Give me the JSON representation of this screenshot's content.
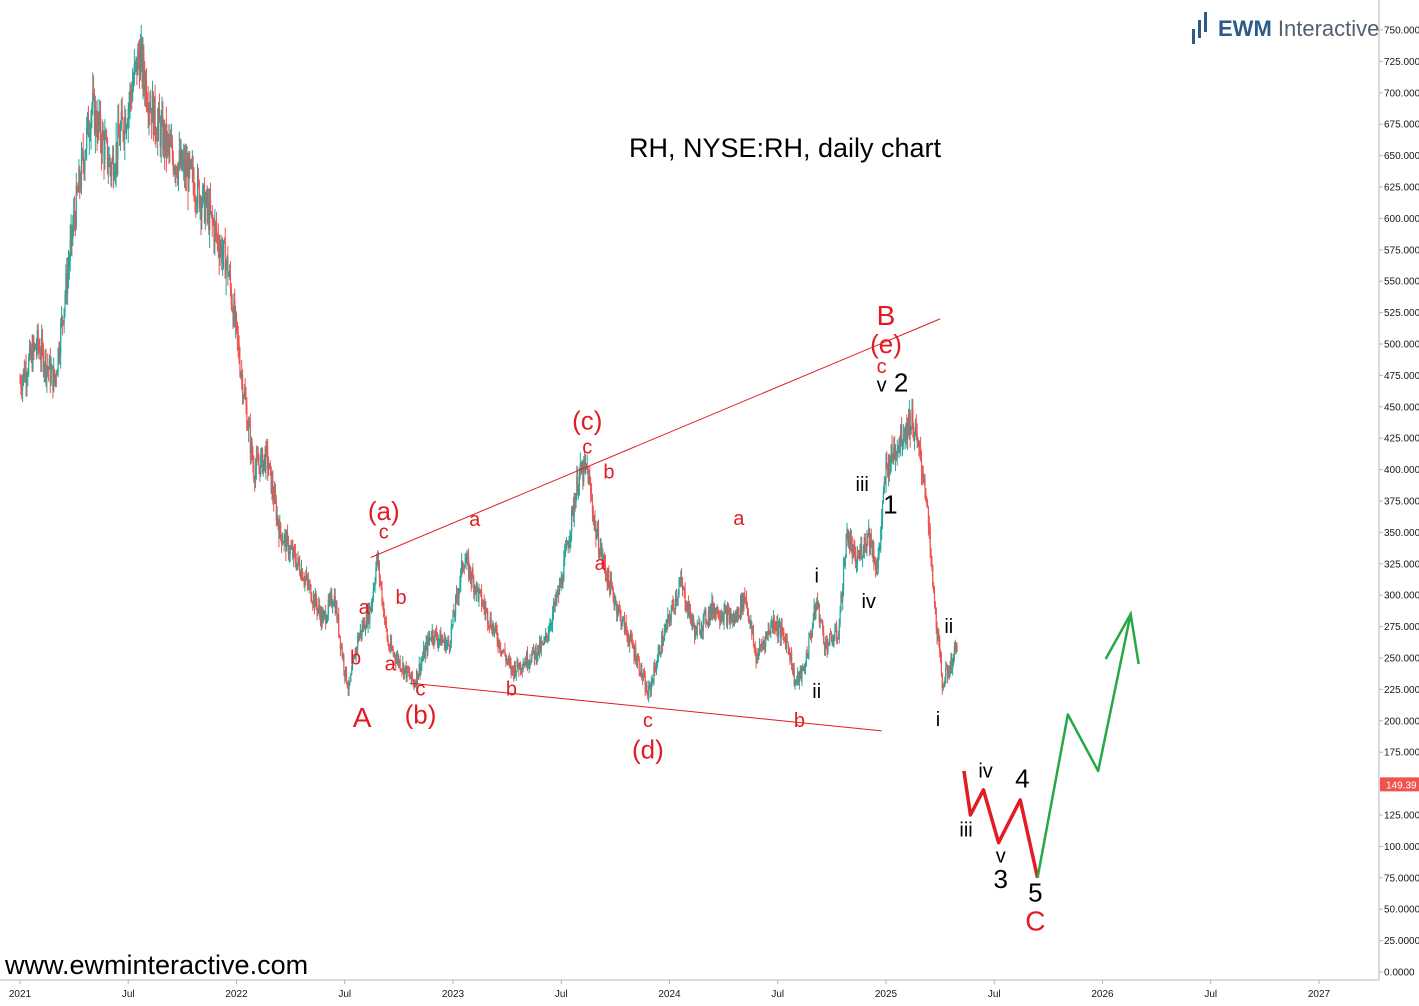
{
  "brand": {
    "name_bold": "EWM",
    "name_rest": " Interactive"
  },
  "watermark": "www.ewminteractive.com",
  "chart_data": {
    "type": "candlestick",
    "title": "RH, NYSE:RH, daily chart",
    "y_ticks": [
      "0.0000",
      "25.0000",
      "50.0000",
      "75.0000",
      "100.0000",
      "125.0000",
      "150.0000",
      "175.0000",
      "200.0000",
      "225.0000",
      "250.0000",
      "275.0000",
      "300.0000",
      "325.0000",
      "350.0000",
      "375.0000",
      "400.0000",
      "425.0000",
      "450.0000",
      "475.0000",
      "500.0000",
      "525.0000",
      "550.0000",
      "575.0000",
      "600.0000",
      "625.0000",
      "650.0000",
      "675.0000",
      "700.0000",
      "725.0000",
      "750.0000"
    ],
    "ylim": [
      0,
      760
    ],
    "x_ticks": [
      "2021",
      "Jul",
      "2022",
      "Jul",
      "2023",
      "Jul",
      "2024",
      "Jul",
      "2025",
      "Jul",
      "2026",
      "Jul",
      "2027"
    ],
    "last_price": "149.39",
    "colors": {
      "up": "#26a69a",
      "down": "#ef5350",
      "annotation": "#e31b23",
      "projection_red": "#e31b23",
      "projection_green": "#27a844"
    },
    "price_path": [
      [
        2021.0,
        470
      ],
      [
        2021.08,
        500
      ],
      [
        2021.16,
        470
      ],
      [
        2021.25,
        600
      ],
      [
        2021.33,
        690
      ],
      [
        2021.42,
        640
      ],
      [
        2021.5,
        690
      ],
      [
        2021.55,
        730
      ],
      [
        2021.62,
        680
      ],
      [
        2021.7,
        650
      ],
      [
        2021.8,
        630
      ],
      [
        2021.88,
        600
      ],
      [
        2021.96,
        560
      ],
      [
        2022.02,
        480
      ],
      [
        2022.08,
        400
      ],
      [
        2022.14,
        410
      ],
      [
        2022.2,
        350
      ],
      [
        2022.3,
        320
      ],
      [
        2022.4,
        280
      ],
      [
        2022.45,
        300
      ],
      [
        2022.5,
        240
      ],
      [
        2022.52,
        225
      ],
      [
        2022.56,
        265
      ],
      [
        2022.62,
        290
      ],
      [
        2022.65,
        330
      ],
      [
        2022.7,
        260
      ],
      [
        2022.78,
        240
      ],
      [
        2022.82,
        230
      ],
      [
        2022.9,
        270
      ],
      [
        2022.98,
        260
      ],
      [
        2023.05,
        330
      ],
      [
        2023.12,
        300
      ],
      [
        2023.22,
        260
      ],
      [
        2023.27,
        240
      ],
      [
        2023.35,
        250
      ],
      [
        2023.42,
        260
      ],
      [
        2023.5,
        310
      ],
      [
        2023.58,
        395
      ],
      [
        2023.62,
        400
      ],
      [
        2023.66,
        350
      ],
      [
        2023.72,
        310
      ],
      [
        2023.78,
        280
      ],
      [
        2023.85,
        250
      ],
      [
        2023.9,
        220
      ],
      [
        2023.96,
        260
      ],
      [
        2024.05,
        310
      ],
      [
        2024.12,
        270
      ],
      [
        2024.2,
        290
      ],
      [
        2024.3,
        280
      ],
      [
        2024.35,
        300
      ],
      [
        2024.4,
        250
      ],
      [
        2024.48,
        280
      ],
      [
        2024.55,
        260
      ],
      [
        2024.58,
        230
      ],
      [
        2024.62,
        240
      ],
      [
        2024.68,
        295
      ],
      [
        2024.72,
        260
      ],
      [
        2024.78,
        270
      ],
      [
        2024.82,
        350
      ],
      [
        2024.86,
        325
      ],
      [
        2024.92,
        350
      ],
      [
        2024.96,
        320
      ],
      [
        2025.0,
        400
      ],
      [
        2025.05,
        420
      ],
      [
        2025.08,
        430
      ],
      [
        2025.12,
        440
      ],
      [
        2025.18,
        390
      ],
      [
        2025.22,
        300
      ],
      [
        2025.26,
        230
      ],
      [
        2025.3,
        245
      ],
      [
        2025.33,
        260
      ]
    ],
    "projection_c": [
      [
        2025.36,
        160
      ],
      [
        2025.39,
        125
      ],
      [
        2025.45,
        145
      ],
      [
        2025.52,
        103
      ],
      [
        2025.62,
        137
      ],
      [
        2025.7,
        75
      ]
    ],
    "projection_up": [
      [
        2025.7,
        75
      ],
      [
        2025.84,
        205
      ],
      [
        2025.98,
        160
      ],
      [
        2026.13,
        285
      ]
    ],
    "trendlines": [
      {
        "from": [
          2022.62,
          330
        ],
        "to": [
          2025.25,
          520
        ]
      },
      {
        "from": [
          2022.8,
          230
        ],
        "to": [
          2024.98,
          192
        ]
      }
    ],
    "annotations": [
      {
        "text": "A",
        "color": "red",
        "size": "lg",
        "x": 2022.58,
        "y": 195
      },
      {
        "text": "(a)",
        "color": "red",
        "size": "md",
        "x": 2022.68,
        "y": 360
      },
      {
        "text": "c",
        "color": "red",
        "size": "sm",
        "x": 2022.68,
        "y": 345
      },
      {
        "text": "a",
        "color": "red",
        "size": "sm",
        "x": 2022.59,
        "y": 285
      },
      {
        "text": "b",
        "color": "red",
        "size": "sm",
        "x": 2022.76,
        "y": 293
      },
      {
        "text": "b",
        "color": "red",
        "size": "sm",
        "x": 2022.55,
        "y": 245
      },
      {
        "text": "a",
        "color": "red",
        "size": "sm",
        "x": 2022.71,
        "y": 240
      },
      {
        "text": "c",
        "color": "red",
        "size": "sm",
        "x": 2022.85,
        "y": 220
      },
      {
        "text": "(b)",
        "color": "red",
        "size": "md",
        "x": 2022.85,
        "y": 198
      },
      {
        "text": "a",
        "color": "red",
        "size": "sm",
        "x": 2023.1,
        "y": 355
      },
      {
        "text": "b",
        "color": "red",
        "size": "sm",
        "x": 2023.27,
        "y": 220
      },
      {
        "text": "(c)",
        "color": "red",
        "size": "md",
        "x": 2023.62,
        "y": 432
      },
      {
        "text": "c",
        "color": "red",
        "size": "sm",
        "x": 2023.62,
        "y": 413
      },
      {
        "text": "b",
        "color": "red",
        "size": "sm",
        "x": 2023.72,
        "y": 393
      },
      {
        "text": "a",
        "color": "red",
        "size": "sm",
        "x": 2023.68,
        "y": 320
      },
      {
        "text": "c",
        "color": "red",
        "size": "sm",
        "x": 2023.9,
        "y": 195
      },
      {
        "text": "(d)",
        "color": "red",
        "size": "md",
        "x": 2023.9,
        "y": 170
      },
      {
        "text": "a",
        "color": "red",
        "size": "sm",
        "x": 2024.32,
        "y": 356
      },
      {
        "text": "b",
        "color": "red",
        "size": "sm",
        "x": 2024.6,
        "y": 195
      },
      {
        "text": "i",
        "color": "black",
        "size": "sm",
        "x": 2024.68,
        "y": 310
      },
      {
        "text": "ii",
        "color": "black",
        "size": "sm",
        "x": 2024.68,
        "y": 218
      },
      {
        "text": "iii",
        "color": "black",
        "size": "sm",
        "x": 2024.89,
        "y": 383
      },
      {
        "text": "iv",
        "color": "black",
        "size": "sm",
        "x": 2024.92,
        "y": 290
      },
      {
        "text": "B",
        "color": "red",
        "size": "lg",
        "x": 2025.0,
        "y": 515
      },
      {
        "text": "(e)",
        "color": "red",
        "size": "md",
        "x": 2025.0,
        "y": 493
      },
      {
        "text": "c",
        "color": "red",
        "size": "sm",
        "x": 2024.98,
        "y": 477
      },
      {
        "text": "v",
        "color": "black",
        "size": "sm",
        "x": 2024.98,
        "y": 462
      },
      {
        "text": "2",
        "color": "black",
        "size": "md",
        "x": 2025.07,
        "y": 462
      },
      {
        "text": "1",
        "color": "black",
        "size": "md",
        "x": 2025.02,
        "y": 365
      },
      {
        "text": "ii",
        "color": "black",
        "size": "sm",
        "x": 2025.29,
        "y": 270
      },
      {
        "text": "i",
        "color": "black",
        "size": "sm",
        "x": 2025.24,
        "y": 196
      },
      {
        "text": "iv",
        "color": "black",
        "size": "sm",
        "x": 2025.46,
        "y": 155
      },
      {
        "text": "iii",
        "color": "black",
        "size": "sm",
        "x": 2025.37,
        "y": 108
      },
      {
        "text": "4",
        "color": "black",
        "size": "md",
        "x": 2025.63,
        "y": 147
      },
      {
        "text": "v",
        "color": "black",
        "size": "sm",
        "x": 2025.53,
        "y": 87
      },
      {
        "text": "3",
        "color": "black",
        "size": "md",
        "x": 2025.53,
        "y": 67
      },
      {
        "text": "5",
        "color": "black",
        "size": "md",
        "x": 2025.69,
        "y": 56
      },
      {
        "text": "C",
        "color": "red",
        "size": "lg",
        "x": 2025.69,
        "y": 33
      }
    ]
  }
}
